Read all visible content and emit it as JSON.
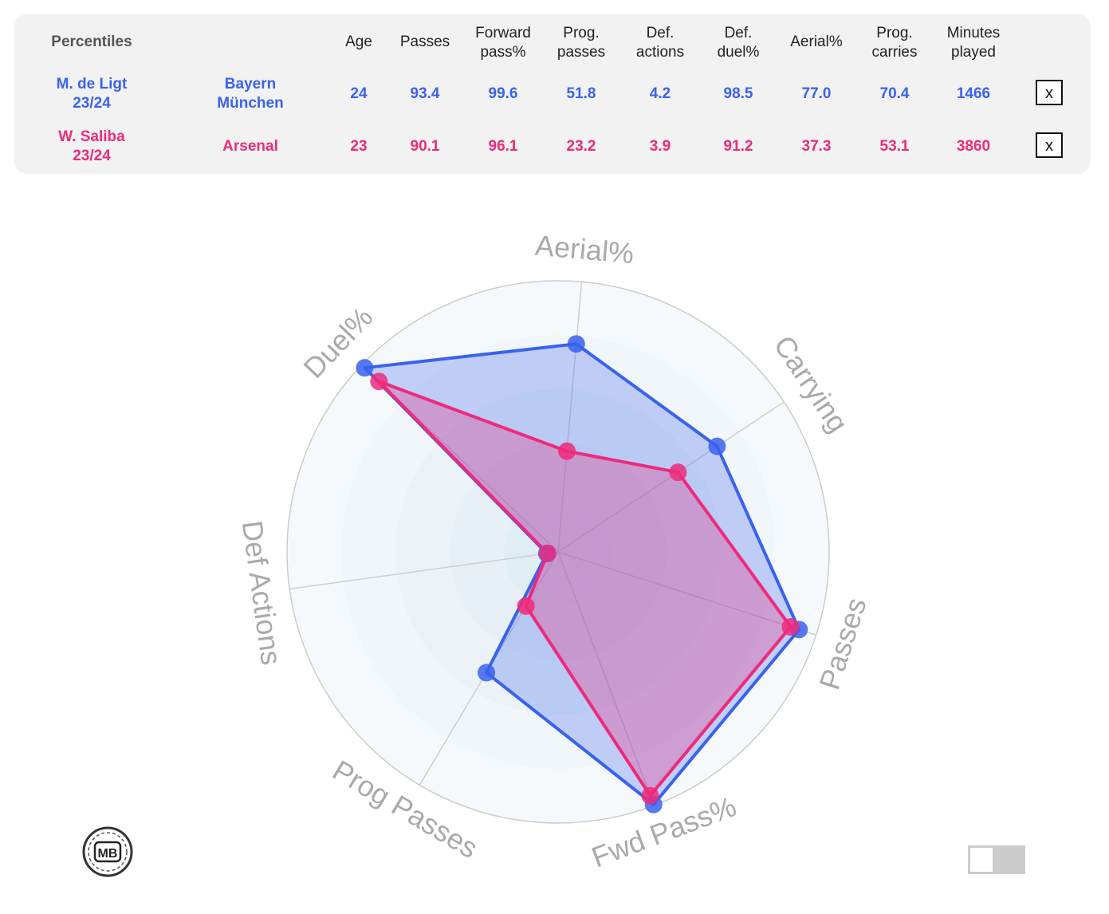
{
  "table": {
    "title": "Percentiles",
    "headers": [
      "Age",
      "Passes",
      "Forward\npass%",
      "Prog.\npasses",
      "Def.\nactions",
      "Def.\nduel%",
      "Aerial%",
      "Prog.\ncarries",
      "Minutes\nplayed"
    ],
    "remove_label": "x",
    "players": [
      {
        "name": "M. de Ligt\n23/24",
        "team": "Bayern\nMünchen",
        "color": "#3a62ee",
        "values": [
          "24",
          "93.4",
          "99.6",
          "51.8",
          "4.2",
          "98.5",
          "77.0",
          "70.4",
          "1466"
        ]
      },
      {
        "name": "W. Saliba\n23/24",
        "team": "Arsenal",
        "color": "#ee2a7b",
        "values": [
          "23",
          "90.1",
          "96.1",
          "23.2",
          "3.9",
          "91.2",
          "37.3",
          "53.1",
          "3860"
        ]
      }
    ]
  },
  "chart_data": {
    "type": "radar",
    "axes": [
      "Aerial%",
      "Carrying",
      "Passes",
      "Fwd Pass%",
      "Prog Passes",
      "Def Actions",
      "Duel%"
    ],
    "range": [
      0,
      100
    ],
    "series": [
      {
        "name": "M. de Ligt 23/24",
        "color": "#3a62ee",
        "values": [
          77.0,
          70.4,
          93.4,
          99.6,
          51.8,
          4.2,
          98.5
        ]
      },
      {
        "name": "W. Saliba 23/24",
        "color": "#ee2a7b",
        "values": [
          37.3,
          53.1,
          90.1,
          96.1,
          23.2,
          3.9,
          91.2
        ]
      }
    ]
  },
  "logo_text": "MB",
  "toggle_state": "off"
}
